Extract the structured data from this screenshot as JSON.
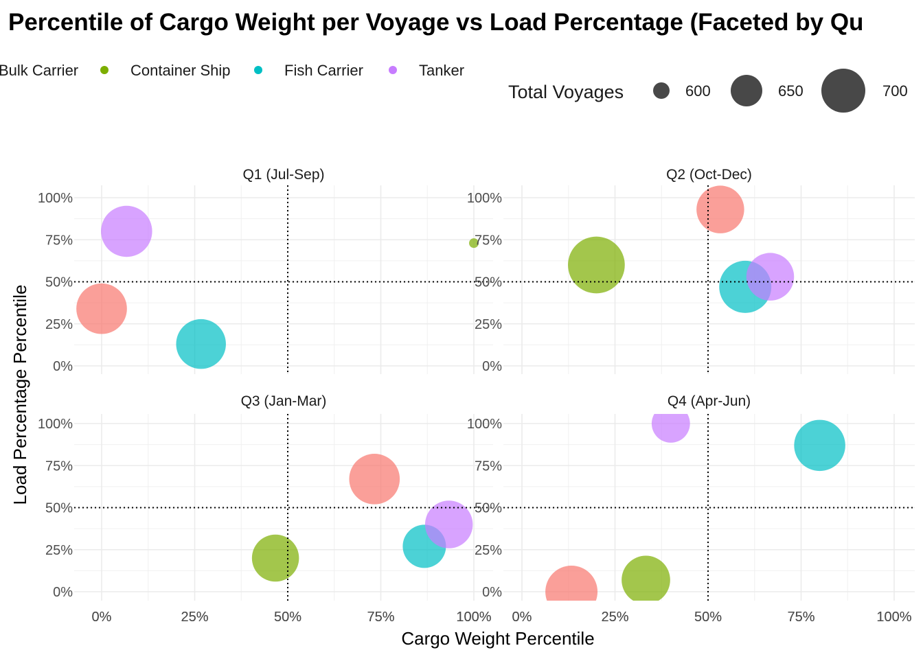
{
  "chart_data": {
    "type": "scatter",
    "title": "Percentile of Cargo Weight per Voyage vs Load Percentage (Faceted by Qu",
    "xlabel": "Cargo Weight Percentile",
    "ylabel": "Load Percentage Percentile",
    "xlim": [
      0,
      1
    ],
    "ylim": [
      0,
      1
    ],
    "x_ticks": [
      "0%",
      "25%",
      "50%",
      "75%",
      "100%"
    ],
    "y_ticks": [
      "0%",
      "25%",
      "50%",
      "75%",
      "100%"
    ],
    "reference_lines": {
      "x": 0.5,
      "y": 0.5,
      "style": "dotted"
    },
    "grid": true,
    "legend": {
      "placement": "top",
      "color_entries": [
        {
          "name": "Bulk Carrier",
          "color": "#F8766D"
        },
        {
          "name": "Container Ship",
          "color": "#7CAE00"
        },
        {
          "name": "Fish Carrier",
          "color": "#00BFC4"
        },
        {
          "name": "Tanker",
          "color": "#C77CFF"
        }
      ],
      "size_title": "Total Voyages",
      "size_entries": [
        {
          "label": "600",
          "value": 600
        },
        {
          "label": "650",
          "value": 650
        },
        {
          "label": "700",
          "value": 700
        }
      ]
    },
    "facets": [
      {
        "label": "Q1 (Jul-Sep)",
        "points": [
          {
            "series": "Bulk Carrier",
            "x": 0.0,
            "y": 0.34,
            "size": 682
          },
          {
            "series": "Container Ship",
            "x": 1.0,
            "y": 0.73,
            "size": 560
          },
          {
            "series": "Fish Carrier",
            "x": 0.267,
            "y": 0.13,
            "size": 678
          },
          {
            "series": "Tanker",
            "x": 0.067,
            "y": 0.8,
            "size": 685
          }
        ]
      },
      {
        "label": "Q2 (Oct-Dec)",
        "points": [
          {
            "series": "Bulk Carrier",
            "x": 0.533,
            "y": 0.93,
            "size": 668
          },
          {
            "series": "Container Ship",
            "x": 0.2,
            "y": 0.6,
            "size": 715
          },
          {
            "series": "Fish Carrier",
            "x": 0.6,
            "y": 0.47,
            "size": 690
          },
          {
            "series": "Tanker",
            "x": 0.667,
            "y": 0.53,
            "size": 668
          }
        ]
      },
      {
        "label": "Q3 (Jan-Mar)",
        "points": [
          {
            "series": "Bulk Carrier",
            "x": 0.733,
            "y": 0.67,
            "size": 682
          },
          {
            "series": "Container Ship",
            "x": 0.467,
            "y": 0.2,
            "size": 665
          },
          {
            "series": "Fish Carrier",
            "x": 0.867,
            "y": 0.27,
            "size": 648
          },
          {
            "series": "Tanker",
            "x": 0.933,
            "y": 0.4,
            "size": 668
          }
        ]
      },
      {
        "label": "Q4 (Apr-Jun)",
        "points": [
          {
            "series": "Bulk Carrier",
            "x": 0.133,
            "y": 0.0,
            "size": 690
          },
          {
            "series": "Container Ship",
            "x": 0.333,
            "y": 0.07,
            "size": 672
          },
          {
            "series": "Fish Carrier",
            "x": 0.8,
            "y": 0.87,
            "size": 685
          },
          {
            "series": "Tanker",
            "x": 0.4,
            "y": 1.0,
            "size": 628
          }
        ]
      }
    ]
  }
}
